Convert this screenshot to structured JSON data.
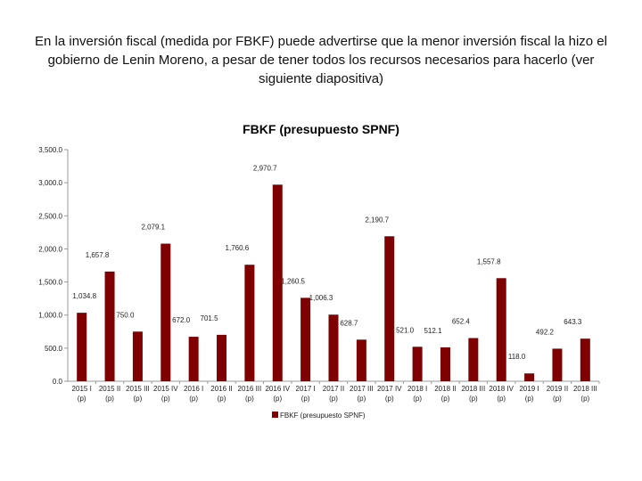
{
  "slide": {
    "title": "En la inversión fiscal (medida por FBKF) puede advertirse que la menor inversión fiscal la hizo el gobierno de Lenin Moreno, a pesar de tener todos los recursos necesarios para hacerlo (ver siguiente diapositiva)"
  },
  "chart_data": {
    "type": "bar",
    "title": "FBKF (presupuesto SPNF)",
    "xlabel": "",
    "ylabel": "",
    "ylim": [
      0,
      3500
    ],
    "yticks": [
      0,
      500,
      1000,
      1500,
      2000,
      2500,
      3000,
      3500
    ],
    "ytick_labels": [
      "0.0",
      "500.0",
      "1,000.0",
      "1,500.0",
      "2,000.0",
      "2,500.0",
      "3,000.0",
      "3,500.0"
    ],
    "categories": [
      [
        "2015 I",
        "(p)"
      ],
      [
        "2015 II",
        "(p)"
      ],
      [
        "2015 III",
        "(p)"
      ],
      [
        "2015 IV",
        "(p)"
      ],
      [
        "2016 I",
        "(p)"
      ],
      [
        "2016 II",
        "(p)"
      ],
      [
        "2016 III",
        "(p)"
      ],
      [
        "2016 IV",
        "(p)"
      ],
      [
        "2017 I",
        "(p)"
      ],
      [
        "2017 II",
        "(p)"
      ],
      [
        "2017 III",
        "(p)"
      ],
      [
        "2017 IV",
        "(p)"
      ],
      [
        "2018 I",
        "(p)"
      ],
      [
        "2018 II",
        "(p)"
      ],
      [
        "2018 III",
        "(p)"
      ],
      [
        "2018 IV",
        "(p)"
      ],
      [
        "2019 I",
        "(p)"
      ],
      [
        "2019 II",
        "(p)"
      ],
      [
        "2018 III",
        "(p)"
      ]
    ],
    "series": [
      {
        "name": "FBKF (presupuesto SPNF)",
        "color": "#7f0000",
        "values": [
          1034.8,
          1657.8,
          750.0,
          2079.1,
          672.0,
          701.5,
          1760.6,
          2970.7,
          1260.5,
          1006.3,
          628.7,
          2190.7,
          521.0,
          512.1,
          652.4,
          1557.8,
          118.0,
          492.2,
          643.3
        ],
        "labels": [
          "1,034.8",
          "1,657.8",
          "750.0",
          "2,079.1",
          "672.0",
          "701.5",
          "1,760.6",
          "2,970.7",
          "1,260.5",
          "1,006.3",
          "628.7",
          "2,190.7",
          "521.0",
          "512.1",
          "652.4",
          "1,557.8",
          "118.0",
          "492.2",
          "643.3"
        ]
      }
    ],
    "legend": {
      "position": "bottom",
      "label": "FBKF (presupuesto SPNF)"
    },
    "grid": false
  }
}
